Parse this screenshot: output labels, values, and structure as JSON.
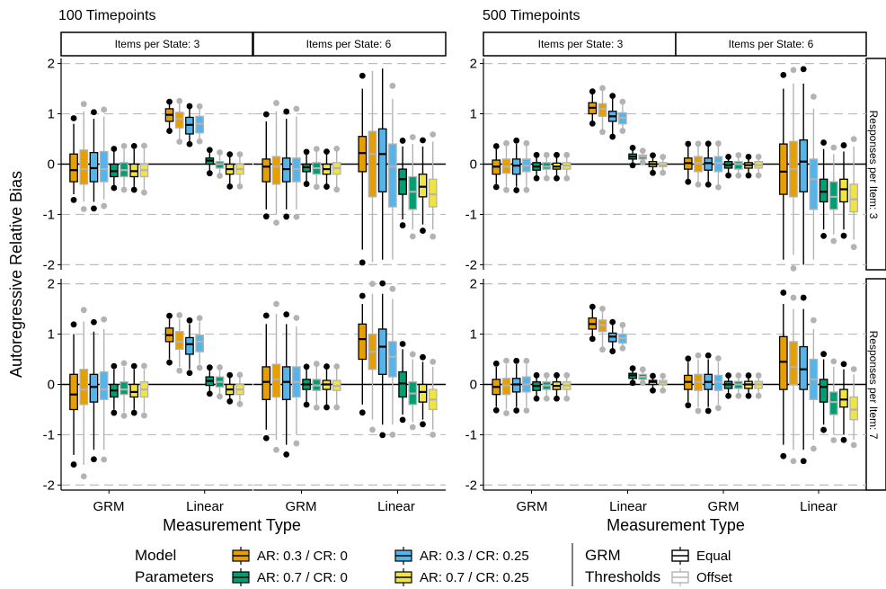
{
  "figure": {
    "group_titles": [
      "100 Timepoints",
      "500 Timepoints"
    ],
    "facet_titles": [
      "Items per State: 3",
      "Items per State: 6",
      "Items per State: 3",
      "Items per State: 6"
    ],
    "row_strips": [
      "Responses per Item: 3",
      "Responses per Item: 7"
    ],
    "ylabel": "Autoregressive Relative Bias",
    "xlabel_left": "Measurement Type",
    "xlabel_right": "Measurement Type",
    "x_categories": [
      "GRM",
      "Linear"
    ],
    "y_ticks": [
      "2",
      "1",
      "0",
      "-1",
      "-2"
    ],
    "legend": {
      "model_title_line1": "Model",
      "model_title_line2": "Parameters",
      "model_items": [
        {
          "label": "AR: 0.3 / CR: 0",
          "color": "#E69F00"
        },
        {
          "label": "AR: 0.3 / CR: 0.25",
          "color": "#56B4E9"
        },
        {
          "label": "AR: 0.7 / CR: 0",
          "color": "#009E73"
        },
        {
          "label": "AR: 0.7 / CR: 0.25",
          "color": "#F0E442"
        }
      ],
      "grm_title_line1": "GRM",
      "grm_title_line2": "Thresholds",
      "grm_items": [
        {
          "label": "Equal",
          "color": "#000000"
        },
        {
          "label": "Offset",
          "color": "#B3B3B3"
        }
      ]
    }
  },
  "chart_data": {
    "type": "boxplot",
    "ylim": [
      -2.1,
      2.1
    ],
    "grid": "dashed horizontal at integer values",
    "series_order": [
      "AR: 0.3 / CR: 0 | Equal",
      "AR: 0.3 / CR: 0 | Offset",
      "AR: 0.3 / CR: 0.25 | Equal",
      "AR: 0.3 / CR: 0.25 | Offset",
      "AR: 0.7 / CR: 0 | Equal",
      "AR: 0.7 / CR: 0 | Offset",
      "AR: 0.7 / CR: 0.25 | Equal",
      "AR: 0.7 / CR: 0.25 | Offset"
    ],
    "panels": [
      {
        "timepoints": "100 Timepoints",
        "items": "Items per State: 3",
        "responses": "Responses per Item: 3",
        "GRM": [
          [
            -0.6,
            -0.35,
            -0.12,
            0.2,
            0.8
          ],
          [
            -0.75,
            -0.4,
            -0.1,
            0.28,
            1.05
          ],
          [
            -0.75,
            -0.35,
            -0.08,
            0.23,
            0.9
          ],
          [
            -0.7,
            -0.35,
            -0.1,
            0.25,
            0.95
          ],
          [
            -0.42,
            -0.25,
            -0.14,
            0.0,
            0.25
          ],
          [
            -0.45,
            -0.25,
            -0.12,
            0.03,
            0.3
          ],
          [
            -0.45,
            -0.25,
            -0.14,
            0.0,
            0.3
          ],
          [
            -0.5,
            -0.25,
            -0.12,
            0.0,
            0.3
          ]
        ],
        "Linear": [
          [
            0.7,
            0.85,
            0.98,
            1.1,
            1.2
          ],
          [
            0.5,
            0.72,
            0.9,
            1.03,
            1.2
          ],
          [
            0.45,
            0.6,
            0.78,
            0.93,
            1.1
          ],
          [
            0.5,
            0.62,
            0.8,
            0.95,
            1.1
          ],
          [
            -0.15,
            0.0,
            0.07,
            0.12,
            0.25
          ],
          [
            -0.2,
            -0.08,
            0.0,
            0.05,
            0.2
          ],
          [
            -0.4,
            -0.2,
            -0.1,
            0.0,
            0.15
          ],
          [
            -0.4,
            -0.2,
            -0.1,
            0.0,
            0.15
          ]
        ]
      },
      {
        "timepoints": "100 Timepoints",
        "items": "Items per State: 6",
        "responses": "Responses per Item: 3",
        "GRM": [
          [
            -0.9,
            -0.35,
            -0.05,
            0.1,
            0.85
          ],
          [
            -1.0,
            -0.4,
            -0.05,
            0.15,
            1.05
          ],
          [
            -0.9,
            -0.35,
            -0.1,
            0.12,
            0.9
          ],
          [
            -0.9,
            -0.35,
            -0.1,
            0.12,
            0.95
          ],
          [
            -0.35,
            -0.15,
            -0.06,
            0.0,
            0.2
          ],
          [
            -0.4,
            -0.2,
            -0.08,
            0.03,
            0.25
          ],
          [
            -0.4,
            -0.2,
            -0.1,
            0.0,
            0.2
          ],
          [
            -0.45,
            -0.2,
            -0.08,
            0.03,
            0.25
          ]
        ],
        "Linear": [
          [
            -1.7,
            -0.15,
            0.22,
            0.55,
            1.5
          ],
          [
            -1.95,
            -0.65,
            0.2,
            0.65,
            1.85
          ],
          [
            -1.9,
            -0.55,
            0.2,
            0.7,
            1.9
          ],
          [
            -1.9,
            -0.85,
            -0.05,
            0.4,
            1.3
          ],
          [
            -1.1,
            -0.6,
            -0.3,
            -0.1,
            0.35
          ],
          [
            -1.3,
            -0.9,
            -0.55,
            -0.25,
            0.4
          ],
          [
            -1.2,
            -0.65,
            -0.45,
            -0.2,
            0.35
          ],
          [
            -1.3,
            -0.85,
            -0.6,
            -0.3,
            0.45
          ]
        ]
      },
      {
        "timepoints": "500 Timepoints",
        "items": "Items per State: 3",
        "responses": "Responses per Item: 3",
        "GRM": [
          [
            -0.4,
            -0.2,
            -0.05,
            0.08,
            0.3
          ],
          [
            -0.45,
            -0.18,
            -0.05,
            0.1,
            0.35
          ],
          [
            -0.45,
            -0.2,
            -0.03,
            0.1,
            0.4
          ],
          [
            -0.45,
            -0.15,
            -0.03,
            0.1,
            0.35
          ],
          [
            -0.25,
            -0.12,
            -0.05,
            0.03,
            0.15
          ],
          [
            -0.25,
            -0.1,
            -0.05,
            0.03,
            0.15
          ],
          [
            -0.25,
            -0.1,
            -0.05,
            0.02,
            0.15
          ],
          [
            -0.25,
            -0.1,
            -0.03,
            0.03,
            0.15
          ]
        ],
        "Linear": [
          [
            0.85,
            1.0,
            1.12,
            1.22,
            1.4
          ],
          [
            0.7,
            0.95,
            1.1,
            1.2,
            1.45
          ],
          [
            0.6,
            0.85,
            0.95,
            1.05,
            1.3
          ],
          [
            0.7,
            0.8,
            0.92,
            1.02,
            1.2
          ],
          [
            0.0,
            0.1,
            0.15,
            0.2,
            0.3
          ],
          [
            0.05,
            0.1,
            0.15,
            0.18,
            0.25
          ],
          [
            -0.15,
            -0.05,
            0.0,
            0.05,
            0.15
          ],
          [
            -0.15,
            -0.05,
            -0.02,
            0.03,
            0.12
          ]
        ]
      },
      {
        "timepoints": "500 Timepoints",
        "items": "Items per State: 6",
        "responses": "Responses per Item: 3",
        "GRM": [
          [
            -0.3,
            -0.1,
            0.02,
            0.12,
            0.35
          ],
          [
            -0.35,
            -0.15,
            0.02,
            0.15,
            0.35
          ],
          [
            -0.35,
            -0.12,
            0.02,
            0.12,
            0.35
          ],
          [
            -0.4,
            -0.15,
            0.02,
            0.15,
            0.35
          ],
          [
            -0.2,
            -0.08,
            -0.02,
            0.05,
            0.12
          ],
          [
            -0.2,
            -0.1,
            0.0,
            0.05,
            0.15
          ],
          [
            -0.2,
            -0.08,
            -0.02,
            0.03,
            0.12
          ],
          [
            -0.2,
            -0.08,
            -0.02,
            0.05,
            0.12
          ]
        ],
        "Linear": [
          [
            -1.9,
            -0.6,
            -0.15,
            0.4,
            1.5
          ],
          [
            -1.8,
            -0.65,
            -0.1,
            0.45,
            1.6
          ],
          [
            -2.0,
            -0.55,
            0.05,
            0.48,
            1.6
          ],
          [
            -1.9,
            -0.9,
            -0.3,
            0.1,
            1.1
          ],
          [
            -1.3,
            -0.75,
            -0.55,
            -0.3,
            0.3
          ],
          [
            -1.4,
            -0.9,
            -0.65,
            -0.35,
            0.2
          ],
          [
            -1.3,
            -0.75,
            -0.5,
            -0.3,
            0.25
          ],
          [
            -1.5,
            -0.95,
            -0.7,
            -0.4,
            0.35
          ]
        ]
      },
      {
        "timepoints": "100 Timepoints",
        "items": "Items per State: 3",
        "responses": "Responses per Item: 7",
        "GRM": [
          [
            -1.4,
            -0.5,
            -0.2,
            0.2,
            1.0
          ],
          [
            -1.6,
            -0.4,
            -0.1,
            0.3,
            1.25
          ],
          [
            -1.3,
            -0.35,
            -0.05,
            0.2,
            1.05
          ],
          [
            -1.3,
            -0.3,
            -0.1,
            0.25,
            1.1
          ],
          [
            -0.5,
            -0.25,
            -0.12,
            0.0,
            0.3
          ],
          [
            -0.55,
            -0.2,
            -0.1,
            0.05,
            0.35
          ],
          [
            -0.5,
            -0.25,
            -0.15,
            0.0,
            0.3
          ],
          [
            -0.55,
            -0.25,
            -0.1,
            0.05,
            0.3
          ]
        ],
        "Linear": [
          [
            0.5,
            0.85,
            0.98,
            1.12,
            1.3
          ],
          [
            0.35,
            0.7,
            0.85,
            1.05,
            1.3
          ],
          [
            0.3,
            0.6,
            0.8,
            0.93,
            1.2
          ],
          [
            0.4,
            0.65,
            0.85,
            0.98,
            1.25
          ],
          [
            -0.15,
            -0.02,
            0.07,
            0.15,
            0.3
          ],
          [
            -0.2,
            -0.05,
            0.05,
            0.15,
            0.3
          ],
          [
            -0.3,
            -0.2,
            -0.1,
            0.0,
            0.15
          ],
          [
            -0.35,
            -0.2,
            -0.1,
            0.0,
            0.15
          ]
        ]
      },
      {
        "timepoints": "100 Timepoints",
        "items": "Items per State: 6",
        "responses": "Responses per Item: 7",
        "GRM": [
          [
            -0.9,
            -0.3,
            0.05,
            0.35,
            1.2
          ],
          [
            -1.1,
            -0.25,
            0.1,
            0.4,
            1.4
          ],
          [
            -1.2,
            -0.3,
            0.05,
            0.35,
            1.2
          ],
          [
            -1.0,
            -0.25,
            0.05,
            0.35,
            1.15
          ],
          [
            -0.35,
            -0.1,
            0.0,
            0.1,
            0.3
          ],
          [
            -0.4,
            -0.12,
            -0.02,
            0.1,
            0.35
          ],
          [
            -0.4,
            -0.1,
            0.0,
            0.08,
            0.3
          ],
          [
            -0.4,
            -0.12,
            -0.03,
            0.08,
            0.3
          ]
        ],
        "Linear": [
          [
            -0.4,
            0.5,
            0.9,
            1.2,
            1.6
          ],
          [
            -0.7,
            0.3,
            0.65,
            1.0,
            1.8
          ],
          [
            -0.8,
            0.2,
            0.75,
            1.1,
            1.8
          ],
          [
            -0.8,
            0.15,
            0.55,
            0.85,
            1.7
          ],
          [
            -0.6,
            -0.25,
            0.02,
            0.25,
            0.7
          ],
          [
            -0.75,
            -0.4,
            -0.18,
            0.05,
            0.5
          ],
          [
            -0.7,
            -0.35,
            -0.15,
            0.0,
            0.45
          ],
          [
            -0.9,
            -0.5,
            -0.3,
            -0.1,
            0.35
          ]
        ]
      },
      {
        "timepoints": "500 Timepoints",
        "items": "Items per State: 3",
        "responses": "Responses per Item: 7",
        "GRM": [
          [
            -0.45,
            -0.2,
            -0.05,
            0.1,
            0.35
          ],
          [
            -0.5,
            -0.2,
            -0.02,
            0.12,
            0.4
          ],
          [
            -0.45,
            -0.15,
            0.0,
            0.12,
            0.4
          ],
          [
            -0.45,
            -0.15,
            0.0,
            0.15,
            0.4
          ],
          [
            -0.25,
            -0.12,
            -0.03,
            0.05,
            0.15
          ],
          [
            -0.25,
            -0.1,
            -0.02,
            0.05,
            0.15
          ],
          [
            -0.25,
            -0.1,
            -0.03,
            0.05,
            0.15
          ],
          [
            -0.25,
            -0.1,
            -0.02,
            0.05,
            0.15
          ]
        ],
        "Linear": [
          [
            0.95,
            1.1,
            1.2,
            1.32,
            1.5
          ],
          [
            0.75,
            1.05,
            1.18,
            1.28,
            1.45
          ],
          [
            0.7,
            0.85,
            0.95,
            1.02,
            1.2
          ],
          [
            0.75,
            0.82,
            0.92,
            1.0,
            1.15
          ],
          [
            0.05,
            0.12,
            0.18,
            0.22,
            0.3
          ],
          [
            0.05,
            0.1,
            0.15,
            0.2,
            0.28
          ],
          [
            -0.1,
            0.0,
            0.05,
            0.08,
            0.15
          ],
          [
            -0.1,
            0.0,
            0.04,
            0.08,
            0.15
          ]
        ]
      },
      {
        "timepoints": "500 Timepoints",
        "items": "Items per State: 6",
        "responses": "Responses per Item: 7",
        "GRM": [
          [
            -0.35,
            -0.1,
            0.05,
            0.18,
            0.45
          ],
          [
            -0.45,
            -0.12,
            0.05,
            0.2,
            0.5
          ],
          [
            -0.45,
            -0.1,
            0.05,
            0.2,
            0.5
          ],
          [
            -0.4,
            -0.12,
            0.05,
            0.18,
            0.45
          ],
          [
            -0.2,
            -0.08,
            0.0,
            0.06,
            0.15
          ],
          [
            -0.2,
            -0.08,
            0.0,
            0.06,
            0.15
          ],
          [
            -0.2,
            -0.08,
            0.0,
            0.06,
            0.15
          ],
          [
            -0.2,
            -0.08,
            0.0,
            0.06,
            0.15
          ]
        ],
        "Linear": [
          [
            -1.2,
            -0.1,
            0.45,
            0.95,
            1.6
          ],
          [
            -1.3,
            0.0,
            0.35,
            0.85,
            1.5
          ],
          [
            -1.3,
            -0.1,
            0.3,
            0.75,
            1.5
          ],
          [
            -1.1,
            -0.3,
            0.1,
            0.5,
            1.1
          ],
          [
            -0.8,
            -0.35,
            -0.05,
            0.1,
            0.5
          ],
          [
            -1.0,
            -0.6,
            -0.35,
            -0.15,
            0.35
          ],
          [
            -1.0,
            -0.45,
            -0.3,
            -0.1,
            0.3
          ],
          [
            -1.1,
            -0.7,
            -0.5,
            -0.25,
            0.2
          ]
        ]
      }
    ]
  }
}
